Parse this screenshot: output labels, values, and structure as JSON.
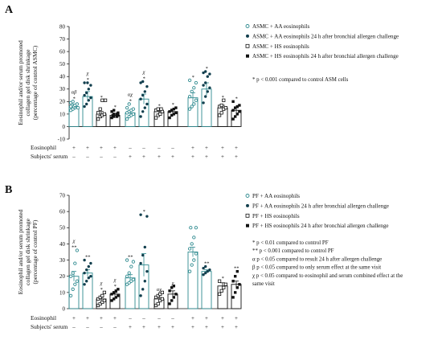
{
  "chart_data": [
    {
      "type": "bar",
      "panel": "A",
      "ylabel_lines": [
        "Eosinophil and/or serum promoted",
        "collagen gel disk shrinkage",
        "(percentage of control ASMC)"
      ],
      "ylim": [
        -10,
        80
      ],
      "yticks": [
        -10,
        0,
        10,
        20,
        30,
        40,
        50,
        60,
        70,
        80
      ],
      "legend": [
        {
          "marker": "open-circle",
          "text": "ASMC + AA eosinophils"
        },
        {
          "marker": "filled-circle",
          "text": "ASMC + AA  eosinophils 24 h after bronchial allergen challenge"
        },
        {
          "marker": "open-square",
          "text": "ASMC + HS eosinophils"
        },
        {
          "marker": "filled-square",
          "text": "ASMC + HS  eosinophils 24 h after bronchial allergen challenge"
        }
      ],
      "notes": [
        "* p < 0.001 compared to control ASM cells"
      ],
      "rows": [
        {
          "label": "Eosinophil",
          "values": [
            "+",
            "+",
            "+",
            "+",
            "–",
            "–",
            "–",
            "–",
            "+",
            "+",
            "+",
            "+"
          ]
        },
        {
          "label": "Subjects' serum",
          "values": [
            "–",
            "–",
            "–",
            "–",
            "+",
            "+",
            "+",
            "+",
            "+",
            "+",
            "+",
            "+"
          ]
        }
      ],
      "bars": [
        {
          "group": "AA",
          "baseline": false,
          "mean": 16,
          "sem": 2,
          "points": [
            13,
            14,
            15,
            15,
            16,
            16,
            17,
            18,
            19,
            20
          ],
          "annot": "αβ *"
        },
        {
          "group": "AA",
          "baseline": true,
          "mean": 24,
          "sem": 4,
          "points": [
            16,
            18,
            21,
            23,
            25,
            27,
            30,
            33,
            35,
            35
          ],
          "annot": "χ *"
        },
        {
          "group": "HS",
          "baseline": false,
          "mean": 10,
          "sem": 2,
          "points": [
            6,
            8,
            9,
            10,
            11,
            14,
            21,
            21
          ],
          "annot": "*"
        },
        {
          "group": "HS",
          "baseline": true,
          "mean": 9,
          "sem": 1,
          "points": [
            7,
            8,
            8,
            9,
            9,
            10,
            10,
            11,
            12,
            13
          ],
          "annot": "*"
        },
        {
          "group": "AA",
          "baseline": false,
          "mean": 11,
          "sem": 2,
          "points": [
            6,
            8,
            9,
            10,
            11,
            12,
            13,
            14,
            15,
            18
          ],
          "annot": "αχ *"
        },
        {
          "group": "AA",
          "baseline": true,
          "mean": 22,
          "sem": 4,
          "points": [
            8,
            12,
            15,
            18,
            22,
            25,
            28,
            32,
            35,
            36
          ],
          "annot": "χ *"
        },
        {
          "group": "HS",
          "baseline": false,
          "mean": 12,
          "sem": 2,
          "points": [
            7,
            9,
            10,
            12,
            13,
            14,
            14
          ],
          "annot": "*"
        },
        {
          "group": "HS",
          "baseline": true,
          "mean": 12,
          "sem": 2,
          "points": [
            7,
            9,
            10,
            11,
            12,
            13,
            14,
            15
          ],
          "annot": "*"
        },
        {
          "group": "AA",
          "baseline": false,
          "mean": 23,
          "sem": 4,
          "points": [
            14,
            16,
            18,
            21,
            24,
            28,
            31,
            35,
            37
          ],
          "annot": "*"
        },
        {
          "group": "AA",
          "baseline": true,
          "mean": 30,
          "sem": 5,
          "points": [
            19,
            24,
            28,
            31,
            33,
            35,
            40,
            42,
            43,
            44
          ],
          "annot": "*"
        },
        {
          "group": "HS",
          "baseline": false,
          "mean": 15,
          "sem": 2,
          "points": [
            9,
            11,
            14,
            15,
            16,
            17,
            21
          ],
          "annot": "*"
        },
        {
          "group": "HS",
          "baseline": true,
          "mean": 13,
          "sem": 2,
          "points": [
            6,
            8,
            10,
            12,
            13,
            15,
            16,
            17,
            20
          ],
          "annot": "*"
        }
      ]
    },
    {
      "type": "bar",
      "panel": "B",
      "ylabel_lines": [
        "Eosinophil and/or serum promoted",
        "collagen gel disk shrinkage",
        "(percentage of control PF)"
      ],
      "ylim": [
        0,
        70
      ],
      "yticks": [
        0,
        10,
        20,
        30,
        40,
        50,
        60,
        70
      ],
      "legend": [
        {
          "marker": "open-circle",
          "text": "PF + AA eosinophils"
        },
        {
          "marker": "filled-circle",
          "text": "PF + AA eosinophils 24 h after bronchial allergen challenge"
        },
        {
          "marker": "open-square",
          "text": "PF + HS eosinophils"
        },
        {
          "marker": "filled-square",
          "text": "PF + HS eosinophils 24 h after bronchial allergen challenge"
        }
      ],
      "notes": [
        "* p < 0.01 compared to control PF",
        "** p < 0.001 compared to control PF",
        "α p < 0.05 compared to result 24 h after allergen challenge",
        "β p < 0.05 compared to only serum effect at the same visit",
        "χ p < 0.05 compared to eosinophil and serum combined effect at the",
        "same visit"
      ],
      "rows": [
        {
          "label": "Eosinophil",
          "values": [
            "+",
            "+",
            "+",
            "+",
            "–",
            "–",
            "–",
            "–",
            "+",
            "+",
            "+",
            "+"
          ]
        },
        {
          "label": "Subjects' serum",
          "values": [
            "–",
            "–",
            "–",
            "–",
            "+",
            "+",
            "+",
            "+",
            "+",
            "+",
            "+",
            "+"
          ]
        }
      ],
      "bars": [
        {
          "group": "AA",
          "baseline": false,
          "mean": 20,
          "sem": 3,
          "points": [
            8,
            12,
            15,
            17,
            20,
            22,
            28,
            36
          ],
          "annot": "χ **"
        },
        {
          "group": "AA",
          "baseline": true,
          "mean": 22,
          "sem": 2,
          "points": [
            15,
            17,
            19,
            20,
            22,
            24,
            26,
            28,
            30
          ],
          "annot": "**"
        },
        {
          "group": "HS",
          "baseline": false,
          "mean": 6,
          "sem": 1,
          "points": [
            2,
            3,
            4,
            5,
            6,
            7,
            8,
            10
          ],
          "annot": "χ *"
        },
        {
          "group": "HS",
          "baseline": true,
          "mean": 9,
          "sem": 1,
          "points": [
            5,
            6,
            7,
            8,
            9,
            10,
            11,
            12
          ],
          "annot": "χ *"
        },
        {
          "group": "AA",
          "baseline": false,
          "mean": 19,
          "sem": 2,
          "points": [
            15,
            16,
            17,
            18,
            20,
            22,
            26,
            29,
            30
          ],
          "annot": "**"
        },
        {
          "group": "AA",
          "baseline": true,
          "mean": 27,
          "sem": 7,
          "points": [
            8,
            12,
            17,
            23,
            28,
            33,
            38,
            57,
            58
          ],
          "annot": "*"
        },
        {
          "group": "HS",
          "baseline": false,
          "mean": 6,
          "sem": 1,
          "points": [
            2,
            3,
            5,
            6,
            7,
            8,
            9,
            10
          ],
          "annot": "αχ"
        },
        {
          "group": "HS",
          "baseline": true,
          "mean": 9,
          "sem": 2,
          "points": [
            3,
            5,
            7,
            9,
            11,
            13,
            14
          ],
          "annot": "χ"
        },
        {
          "group": "AA",
          "baseline": false,
          "mean": 35,
          "sem": 3,
          "points": [
            23,
            27,
            30,
            34,
            37,
            40,
            44,
            50,
            50
          ],
          "annot": ""
        },
        {
          "group": "AA",
          "baseline": true,
          "mean": 23,
          "sem": 1,
          "points": [
            21,
            22,
            23,
            24,
            25,
            26
          ],
          "annot": "**"
        },
        {
          "group": "HS",
          "baseline": false,
          "mean": 14,
          "sem": 2,
          "points": [
            9,
            11,
            13,
            15,
            17
          ],
          "annot": "*"
        },
        {
          "group": "HS",
          "baseline": true,
          "mean": 15,
          "sem": 2,
          "points": [
            7,
            10,
            13,
            15,
            17,
            20,
            23
          ],
          "annot": "**"
        }
      ]
    }
  ],
  "style": {
    "accent": "#2e8a8f",
    "marker_dark": "#123f4e",
    "ink": "#111111"
  }
}
